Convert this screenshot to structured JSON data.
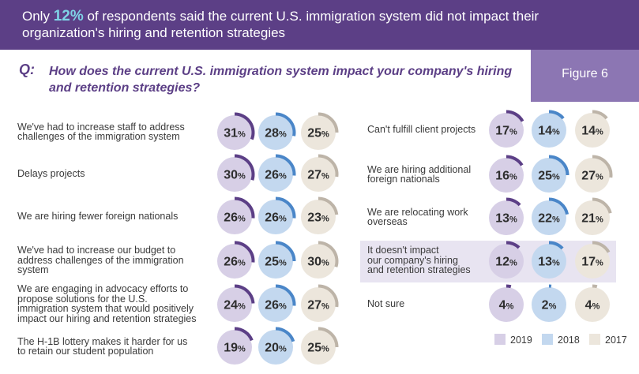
{
  "banner": {
    "prefix": "Only ",
    "highlight": "12%",
    "suffix": " of respondents said the current U.S. immigration system did not impact their organization's hiring and retention strategies"
  },
  "figure_label": "Figure 6",
  "question": {
    "letter": "Q:",
    "text": "How does the current U.S. immigration system impact your company's hiring and retention strategies?"
  },
  "colors": {
    "banner": "#5c3f86",
    "fill_2019": "#d7cfe6",
    "fill_2018": "#c3d8ef",
    "fill_2017": "#ece6dc",
    "arc_2019": "#5c3f86",
    "arc_2018": "#4a86c8",
    "arc_2017": "#bdb4a8"
  },
  "chart_data": {
    "type": "bar",
    "title": "How does the current U.S. immigration system impact your company's hiring and retention strategies?",
    "series": [
      {
        "name": "2019",
        "values": [
          31,
          30,
          26,
          26,
          24,
          19,
          17,
          16,
          13,
          12,
          4
        ]
      },
      {
        "name": "2018",
        "values": [
          28,
          26,
          26,
          25,
          26,
          20,
          14,
          25,
          22,
          13,
          2
        ]
      },
      {
        "name": "2017",
        "values": [
          25,
          27,
          23,
          30,
          27,
          25,
          14,
          27,
          21,
          17,
          4
        ]
      }
    ],
    "categories": [
      "We've had to increase staff to address challenges of the immigration system",
      "Delays projects",
      "We are hiring fewer foreign nationals",
      "We've had to increase our budget to address challenges of the immigration system",
      "We are engaging in advocacy efforts to propose solutions for the U.S. immigration system that would positively impact our hiring and retention strategies",
      "The H-1B lottery makes it harder for us to retain our student population",
      "Can't fulfill client projects",
      "We are hiring additional foreign nationals",
      "We are relocating work overseas",
      "It doesn't impact our company's hiring and retention strategies",
      "Not sure"
    ],
    "unit": "%",
    "legend": {
      "position": "bottom-right",
      "entries": [
        "2019",
        "2018",
        "2017"
      ]
    }
  },
  "rows": [
    {
      "lines": [
        "We've had to increase staff to address",
        "challenges of the immigration system"
      ]
    },
    {
      "lines": [
        "Delays projects"
      ]
    },
    {
      "lines": [
        "We are hiring fewer foreign nationals"
      ]
    },
    {
      "lines": [
        "We've had to increase our budget to",
        "address challenges of the immigration",
        "system"
      ]
    },
    {
      "lines": [
        "We are engaging in advocacy efforts to",
        "propose solutions for the U.S.",
        "immigration system that would positively",
        "impact our hiring and retention strategies"
      ]
    },
    {
      "lines": [
        "The H-1B lottery makes it harder for us",
        "to retain our student population"
      ]
    },
    {
      "lines": [
        "Can't fulfill client projects"
      ]
    },
    {
      "lines": [
        "We are hiring additional",
        "foreign nationals"
      ]
    },
    {
      "lines": [
        "We are relocating work",
        "overseas"
      ]
    },
    {
      "lines": [
        "It doesn't impact",
        "our company's hiring",
        "and retention strategies"
      ]
    },
    {
      "lines": [
        "Not sure"
      ]
    }
  ],
  "legend": {
    "y2019": "2019",
    "y2018": "2018",
    "y2017": "2017"
  }
}
